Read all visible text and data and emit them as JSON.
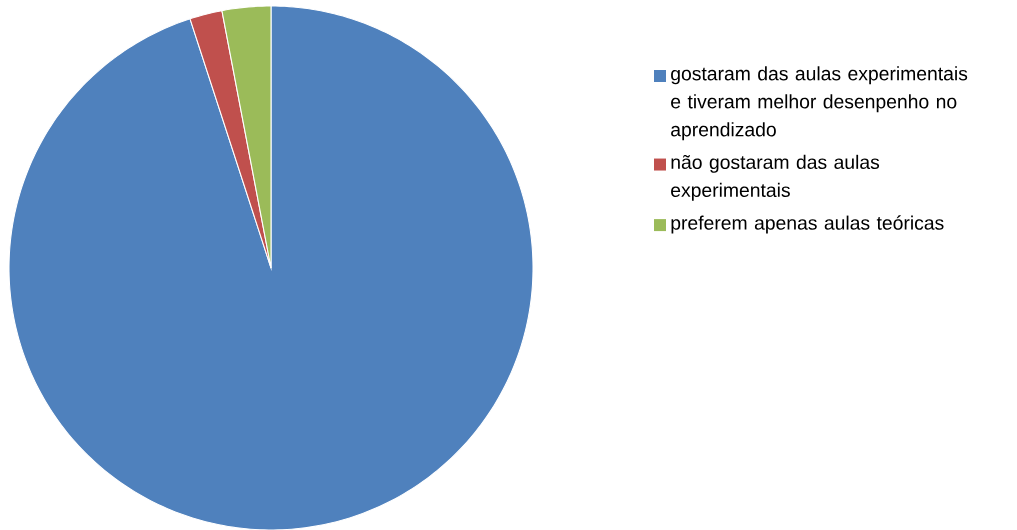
{
  "chart_data": {
    "type": "pie",
    "categories": [
      "gostaram das aulas experimentais e tiveram melhor desenpenho no aprendizado",
      "não gostaram das aulas experimentais",
      "preferem apenas aulas teóricas"
    ],
    "values": [
      95,
      2,
      3
    ],
    "colors": [
      "#4f81bd",
      "#c0504d",
      "#9bbb59"
    ],
    "legend": "right"
  }
}
